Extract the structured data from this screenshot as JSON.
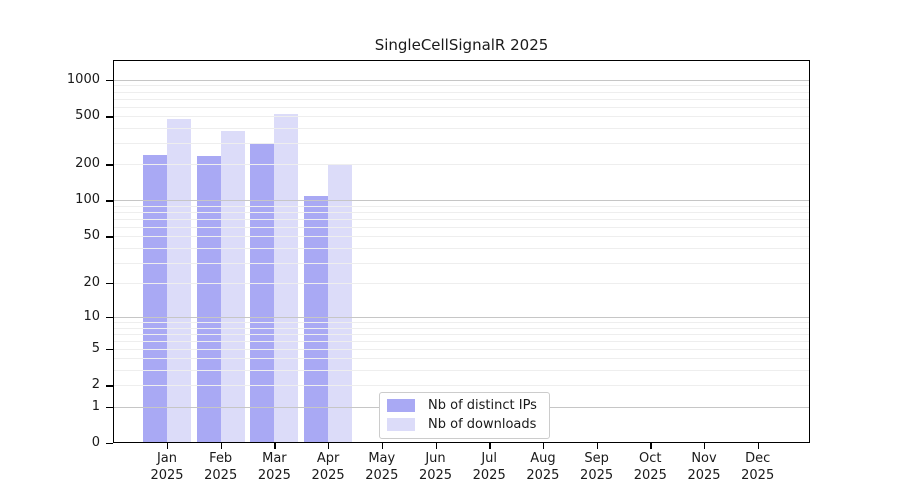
{
  "chart_data": {
    "type": "bar",
    "title": "SingleCellSignalR 2025",
    "categories": [
      "Jan",
      "Feb",
      "Mar",
      "Apr",
      "May",
      "Jun",
      "Jul",
      "Aug",
      "Sep",
      "Oct",
      "Nov",
      "Dec"
    ],
    "category_year": "2025",
    "series": [
      {
        "name": "Nb of distinct IPs",
        "color": "#a9a9f4",
        "values": [
          240,
          234,
          300,
          109,
          0,
          0,
          0,
          0,
          0,
          0,
          0,
          0
        ]
      },
      {
        "name": "Nb of downloads",
        "color": "#dcdcf9",
        "values": [
          475,
          378,
          520,
          197,
          0,
          0,
          0,
          0,
          0,
          0,
          0,
          0
        ]
      }
    ],
    "y_ticks": [
      0,
      1,
      2,
      5,
      10,
      20,
      50,
      100,
      200,
      500,
      1000
    ],
    "y_scale": "log1p",
    "ylim": [
      0,
      1460
    ],
    "xlabel": "",
    "ylabel": "",
    "grid": "horizontal",
    "grid_major_color": "#c6c6c6",
    "grid_minor_color": "#eeeeee",
    "legend_position": "bottom-center-inside"
  }
}
